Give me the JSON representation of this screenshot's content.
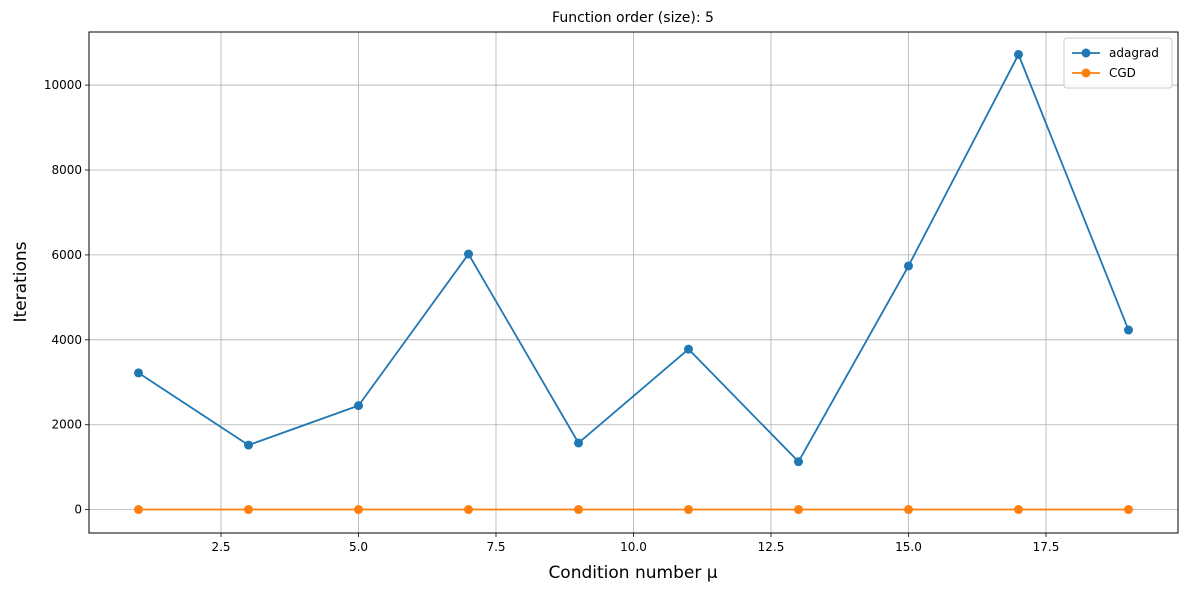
{
  "chart_data": {
    "type": "line",
    "title": "Function order (size): 5",
    "xlabel": "Condition number μ",
    "ylabel": "Iterations",
    "xlim": [
      0.1,
      19.9
    ],
    "ylim": [
      -550,
      11250
    ],
    "x_ticks": [
      2.5,
      5.0,
      7.5,
      10.0,
      12.5,
      15.0,
      17.5
    ],
    "x_tick_labels": [
      "2.5",
      "5.0",
      "7.5",
      "10.0",
      "12.5",
      "15.0",
      "17.5"
    ],
    "y_ticks": [
      0,
      2000,
      4000,
      6000,
      8000,
      10000
    ],
    "y_tick_labels": [
      "0",
      "2000",
      "4000",
      "6000",
      "8000",
      "10000"
    ],
    "grid": true,
    "legend_position": "top-right",
    "x": [
      1,
      3,
      5,
      7,
      9,
      11,
      13,
      15,
      17,
      19
    ],
    "series": [
      {
        "name": "adagrad",
        "color": "#1f77b4",
        "values": [
          3220,
          1520,
          2450,
          6020,
          1570,
          3780,
          1130,
          5740,
          10720,
          4230
        ]
      },
      {
        "name": "CGD",
        "color": "#ff7f0e",
        "values": [
          3,
          3,
          3,
          3,
          3,
          3,
          3,
          3,
          3,
          3
        ]
      }
    ]
  }
}
